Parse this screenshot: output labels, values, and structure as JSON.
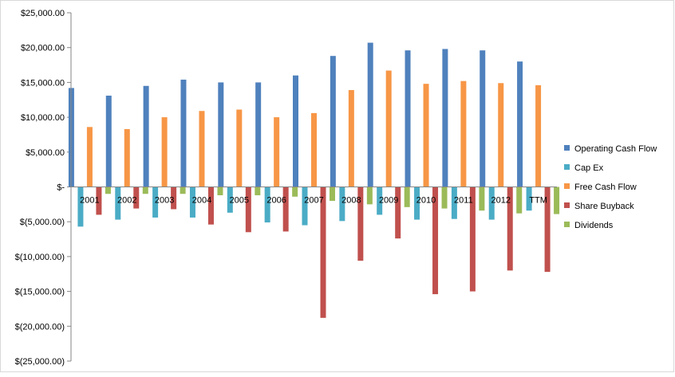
{
  "chart_data": {
    "type": "bar",
    "title": "",
    "xlabel": "",
    "ylabel": "",
    "ylim": [
      -25000,
      25000
    ],
    "ytick_step": 5000,
    "y_tick_labels": [
      "$(25,000.00)",
      "$(20,000.00)",
      "$(15,000.00)",
      "$(10,000.00)",
      "$(5,000.00)",
      "$-",
      "$5,000.00",
      "$10,000.00",
      "$15,000.00",
      "$20,000.00",
      "$25,000.00"
    ],
    "grid": false,
    "legend_position": "right",
    "categories": [
      "2001",
      "2002",
      "2003",
      "2004",
      "2005",
      "2006",
      "2007",
      "2008",
      "2009",
      "2010",
      "2011",
      "2012",
      "TTM"
    ],
    "series": [
      {
        "name": "Operating Cash Flow",
        "color": "#4f81bd",
        "values": [
          14200,
          13100,
          14500,
          15400,
          15000,
          15000,
          16000,
          18800,
          20700,
          19600,
          19800,
          19600,
          18000
        ]
      },
      {
        "name": "Cap Ex",
        "color": "#4bacc6",
        "values": [
          -5700,
          -4700,
          -4400,
          -4400,
          -3700,
          -5100,
          -5500,
          -4900,
          -4000,
          -4700,
          -4600,
          -4700,
          -3400
        ]
      },
      {
        "name": "Free Cash Flow",
        "color": "#f79646",
        "values": [
          8600,
          8300,
          10000,
          10900,
          11100,
          10000,
          10600,
          13900,
          16700,
          14800,
          15200,
          14900,
          14600
        ]
      },
      {
        "name": "Share Buyback",
        "color": "#c0504d",
        "values": [
          -4000,
          -3100,
          -3200,
          -5400,
          -6500,
          -6400,
          -18800,
          -10600,
          -7400,
          -15400,
          -15000,
          -12000,
          -12200
        ]
      },
      {
        "name": "Dividends",
        "color": "#9bbb59",
        "values": [
          -1000,
          -1000,
          -1000,
          -1200,
          -1200,
          -1400,
          -2000,
          -2500,
          -2900,
          -3100,
          -3400,
          -3800,
          -3900
        ]
      }
    ]
  }
}
